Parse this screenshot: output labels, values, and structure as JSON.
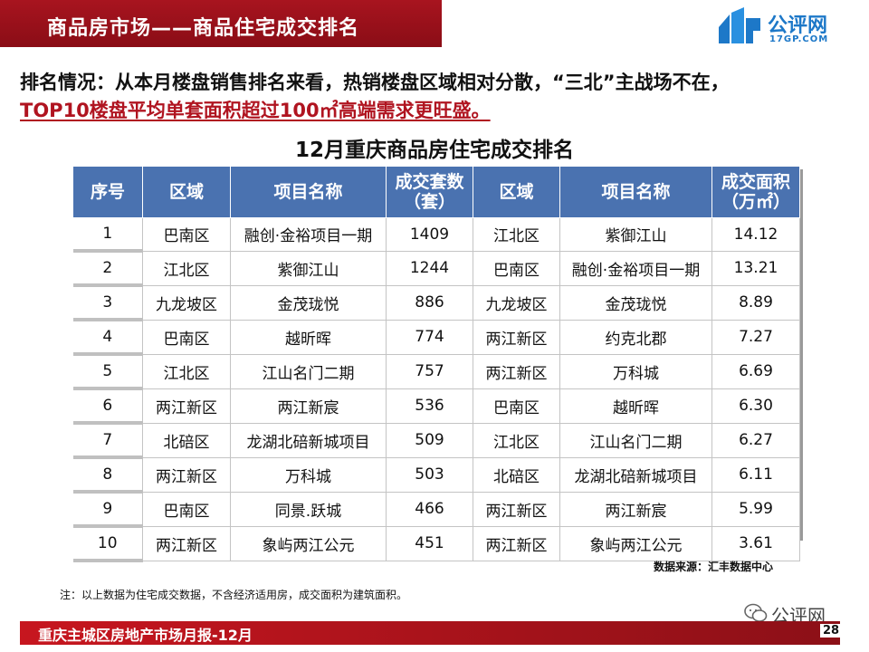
{
  "header": {
    "title": "商品房市场——商品住宅成交排名",
    "logo_text": "公评网",
    "logo_sub": "17GP.COM"
  },
  "summary": {
    "label": "排名情况：",
    "line1": "从本月楼盘销售排名来看，热销楼盘区域相对分散，“三北”主战场不在，",
    "line2": "TOP10楼盘平均单套面积超过100㎡高端需求更旺盛。"
  },
  "table": {
    "title": "12月重庆商品房住宅成交排名",
    "headers": [
      "序号",
      "区域",
      "项目名称",
      "成交套数（套）",
      "区域",
      "项目名称",
      "成交面积（万㎡）"
    ],
    "rows": [
      [
        "1",
        "巴南区",
        "融创·金裕项目一期",
        "1409",
        "江北区",
        "紫御江山",
        "14.12"
      ],
      [
        "2",
        "江北区",
        "紫御江山",
        "1244",
        "巴南区",
        "融创·金裕项目一期",
        "13.21"
      ],
      [
        "3",
        "九龙坡区",
        "金茂珑悦",
        "886",
        "九龙坡区",
        "金茂珑悦",
        "8.89"
      ],
      [
        "4",
        "巴南区",
        "越昕晖",
        "774",
        "两江新区",
        "约克北郡",
        "7.27"
      ],
      [
        "5",
        "江北区",
        "江山名门二期",
        "757",
        "两江新区",
        "万科城",
        "6.69"
      ],
      [
        "6",
        "两江新区",
        "两江新宸",
        "536",
        "巴南区",
        "越昕晖",
        "6.30"
      ],
      [
        "7",
        "北碚区",
        "龙湖北碚新城项目",
        "509",
        "江北区",
        "江山名门二期",
        "6.27"
      ],
      [
        "8",
        "两江新区",
        "万科城",
        "503",
        "北碚区",
        "龙湖北碚新城项目",
        "6.11"
      ],
      [
        "9",
        "巴南区",
        "同景.跃城",
        "466",
        "两江新区",
        "两江新宸",
        "5.99"
      ],
      [
        "10",
        "两江新区",
        "象屿两江公元",
        "451",
        "两江新区",
        "象屿两江公元",
        "3.61"
      ]
    ]
  },
  "source": "数据来源：汇丰数据中心",
  "note": "注：以上数据为住宅成交数据，不含经济适用房，成交面积为建筑面积。",
  "watermark": "公评网",
  "footer": {
    "text": "重庆主城区房地产市场月报-12月",
    "page": "28"
  },
  "colors": {
    "header_red": "#a8141f",
    "table_header_blue": "#4a72b0",
    "highlight_red": "#b01420",
    "logo_blue": "#1d78c8"
  }
}
